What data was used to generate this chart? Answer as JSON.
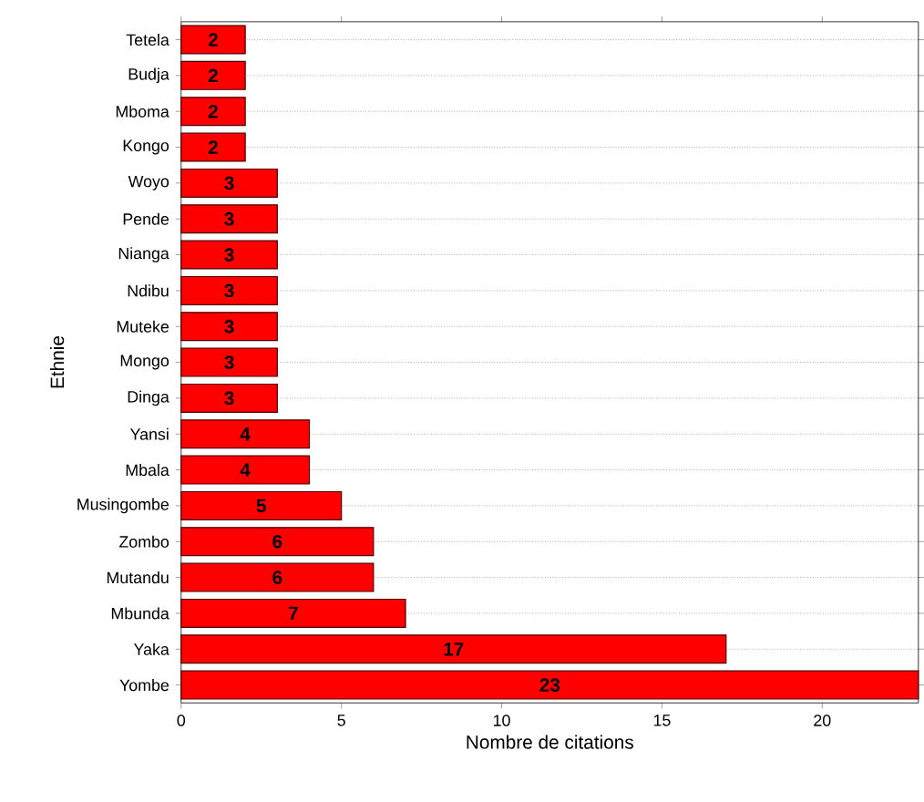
{
  "chart_data": {
    "type": "bar",
    "orientation": "horizontal",
    "xlabel": "Nombre de citations",
    "ylabel": "Ethnie",
    "categories": [
      "Tetela",
      "Budja",
      "Mboma",
      "Kongo",
      "Woyo",
      "Pende",
      "Nianga",
      "Ndibu",
      "Muteke",
      "Mongo",
      "Dinga",
      "Yansi",
      "Mbala",
      "Musingombe",
      "Zombo",
      "Mutandu",
      "Mbunda",
      "Yaka",
      "Yombe"
    ],
    "values": [
      2,
      2,
      2,
      2,
      3,
      3,
      3,
      3,
      3,
      3,
      3,
      4,
      4,
      5,
      6,
      6,
      7,
      17,
      23
    ],
    "color": "#ff0000",
    "xlim": [
      0,
      23
    ],
    "xticks": [
      0,
      5,
      10,
      15,
      20
    ],
    "grid": "y",
    "data_labels": true
  }
}
